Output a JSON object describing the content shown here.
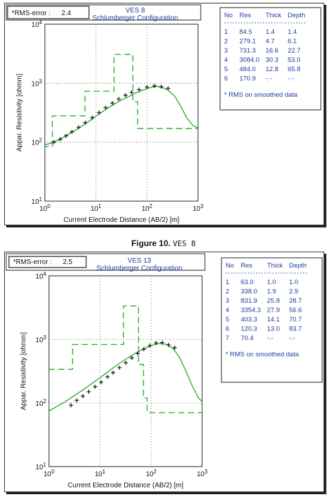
{
  "figures": [
    {
      "rms_label": "*RMS-error :",
      "rms_value": "2.4",
      "title": "VES 8",
      "subtitle": "Schlumberger Configuration",
      "table": {
        "headers": [
          "No",
          "Res",
          "Thick",
          "Depth"
        ],
        "rows": [
          [
            "1",
            "84.5",
            "1.4",
            "1.4"
          ],
          [
            "2",
            "279.1",
            "4.7",
            "6.1"
          ],
          [
            "3",
            "731.3",
            "16.6",
            "22.7"
          ],
          [
            "4",
            "3084.0",
            "30.3",
            "53.0"
          ],
          [
            "5",
            "484.0",
            "12.8",
            "65.8"
          ],
          [
            "6",
            "170.9",
            "-.-",
            "-.-"
          ]
        ],
        "note": "* RMS on smoothed data"
      }
    },
    {
      "rms_label": "*RMS-error :",
      "rms_value": "2.5",
      "title": "VES 13",
      "subtitle": "Schlumberger Configuration",
      "table": {
        "headers": [
          "No",
          "Res",
          "Thick",
          "Depth"
        ],
        "rows": [
          [
            "1",
            "63.0",
            "1.0",
            "1.0"
          ],
          [
            "2",
            "338.0",
            "1.9",
            "2.9"
          ],
          [
            "3",
            "831.9",
            "25.8",
            "28.7"
          ],
          [
            "4",
            "3354.3",
            "27.9",
            "56.6"
          ],
          [
            "5",
            "403.3",
            "14.1",
            "70.7"
          ],
          [
            "6",
            "120.3",
            "13.0",
            "83.7"
          ],
          [
            "7",
            "70.4",
            "-.-",
            "-.-"
          ]
        ],
        "note": "* RMS on smoothed data"
      }
    }
  ],
  "caption": {
    "bold": "Figure 10.",
    "mono": "VES 8"
  },
  "chart_data": [
    {
      "type": "line",
      "title": "VES 8",
      "subtitle": "Schlumberger Configuration",
      "xlabel": "Current Electrode Distance (AB/2) [m]",
      "ylabel": "Appar. Resistivity [ohmm]",
      "xscale": "log",
      "yscale": "log",
      "xlim": [
        1,
        1000
      ],
      "ylim": [
        10,
        10000
      ],
      "x_ticks": [
        "10^0",
        "10^1",
        "10^2",
        "10^3"
      ],
      "y_ticks": [
        "10^1",
        "10^2",
        "10^3",
        "10^4"
      ],
      "grid": "dotted",
      "colors": {
        "model_curve": "#22aa22",
        "layer_model": "#22aa22",
        "field_data": "#111111"
      },
      "series": [
        {
          "role": "observed",
          "points": [
            [
              1.5,
              100
            ],
            [
              2,
              112
            ],
            [
              2.6,
              128
            ],
            [
              3.4,
              150
            ],
            [
              4.6,
              178
            ],
            [
              6.2,
              214
            ],
            [
              8.5,
              260
            ],
            [
              11.5,
              318
            ],
            [
              15.5,
              385
            ],
            [
              21,
              460
            ],
            [
              28,
              540
            ],
            [
              38,
              625
            ],
            [
              50,
              700
            ],
            [
              70,
              780
            ],
            [
              100,
              860
            ],
            [
              140,
              900
            ],
            [
              190,
              870
            ],
            [
              260,
              820
            ]
          ]
        },
        {
          "role": "calculated",
          "points": [
            [
              1,
              90
            ],
            [
              1.3,
              96
            ],
            [
              1.7,
              106
            ],
            [
              2.2,
              118
            ],
            [
              3,
              138
            ],
            [
              4,
              160
            ],
            [
              5.5,
              192
            ],
            [
              7.5,
              230
            ],
            [
              10,
              276
            ],
            [
              13,
              322
            ],
            [
              18,
              390
            ],
            [
              24,
              450
            ],
            [
              32,
              520
            ],
            [
              45,
              600
            ],
            [
              60,
              680
            ],
            [
              80,
              750
            ],
            [
              100,
              810
            ],
            [
              130,
              860
            ],
            [
              160,
              880
            ],
            [
              200,
              850
            ],
            [
              260,
              760
            ],
            [
              350,
              600
            ],
            [
              450,
              420
            ],
            [
              600,
              260
            ],
            [
              800,
              190
            ],
            [
              1000,
              175
            ]
          ]
        },
        {
          "role": "layer_model",
          "layers": [
            [
              0.9,
              84.5
            ],
            [
              1.4,
              279.1
            ],
            [
              6.1,
              731.3
            ],
            [
              22.7,
              3084.0
            ],
            [
              53.0,
              484.0
            ],
            [
              65.8,
              170.9
            ],
            [
              1000,
              170.9
            ]
          ]
        }
      ]
    },
    {
      "type": "line",
      "title": "VES 13",
      "subtitle": "Schlumberger Configuration",
      "xlabel": "Current Electrode Distance (AB/2) [m]",
      "ylabel": "Appar. Resistivity [ohmm]",
      "xscale": "log",
      "yscale": "log",
      "xlim": [
        1,
        1000
      ],
      "ylim": [
        10,
        10000
      ],
      "x_ticks": [
        "10^0",
        "10^1",
        "10^2",
        "10^3"
      ],
      "y_ticks": [
        "10^1",
        "10^2",
        "10^3",
        "10^4"
      ],
      "grid": "dotted",
      "colors": {
        "model_curve": "#22aa22",
        "layer_model": "#22aa22",
        "field_data": "#111111"
      },
      "series": [
        {
          "role": "observed",
          "points": [
            [
              2.7,
              92
            ],
            [
              3.5,
              110
            ],
            [
              4.6,
              128
            ],
            [
              6,
              150
            ],
            [
              8,
              180
            ],
            [
              10.5,
              212
            ],
            [
              14,
              258
            ],
            [
              18,
              300
            ],
            [
              24,
              360
            ],
            [
              32,
              430
            ],
            [
              42,
              510
            ],
            [
              55,
              600
            ],
            [
              72,
              700
            ],
            [
              95,
              800
            ],
            [
              125,
              880
            ],
            [
              165,
              890
            ],
            [
              220,
              820
            ],
            [
              290,
              740
            ]
          ]
        },
        {
          "role": "calculated",
          "points": [
            [
              1,
              75
            ],
            [
              1.5,
              90
            ],
            [
              2.2,
              108
            ],
            [
              3.2,
              132
            ],
            [
              4.5,
              158
            ],
            [
              6.5,
              195
            ],
            [
              9,
              235
            ],
            [
              12.5,
              285
            ],
            [
              17,
              345
            ],
            [
              23,
              410
            ],
            [
              32,
              490
            ],
            [
              45,
              580
            ],
            [
              60,
              660
            ],
            [
              80,
              740
            ],
            [
              110,
              820
            ],
            [
              150,
              860
            ],
            [
              200,
              830
            ],
            [
              270,
              720
            ],
            [
              360,
              520
            ],
            [
              480,
              320
            ],
            [
              650,
              180
            ],
            [
              850,
              120
            ],
            [
              1000,
              105
            ]
          ]
        },
        {
          "role": "layer_model",
          "layers": [
            [
              0.9,
              63.0
            ],
            [
              1.0,
              338.0
            ],
            [
              2.9,
              831.9
            ],
            [
              28.7,
              3354.3
            ],
            [
              56.6,
              403.3
            ],
            [
              70.7,
              120.3
            ],
            [
              83.7,
              70.4
            ],
            [
              1000,
              70.4
            ]
          ]
        }
      ]
    }
  ]
}
